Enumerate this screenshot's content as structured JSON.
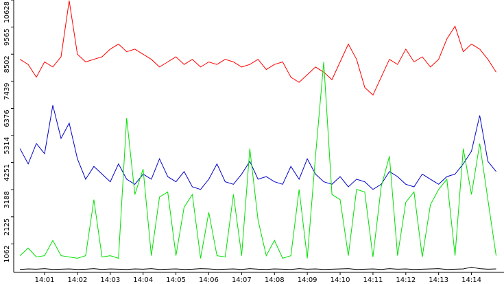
{
  "chart_data": {
    "type": "line",
    "x": [
      0.25,
      0.5,
      0.75,
      1,
      1.25,
      1.5,
      1.75,
      2,
      2.25,
      2.5,
      2.75,
      3,
      3.25,
      3.5,
      3.75,
      4,
      4.25,
      4.5,
      4.75,
      5,
      5.25,
      5.5,
      5.75,
      6,
      6.25,
      6.5,
      6.75,
      7,
      7.25,
      7.5,
      7.75,
      8,
      8.25,
      8.5,
      8.75,
      9,
      9.25,
      9.5,
      9.75,
      10,
      10.25,
      10.5,
      10.75,
      11,
      11.25,
      11.5,
      11.75,
      12,
      12.25,
      12.5,
      12.75,
      13,
      13.25,
      13.5,
      13.75,
      14,
      14.25,
      14.5,
      14.75
    ],
    "series": [
      {
        "color": "#ff0000",
        "values": [
          8300,
          8100,
          7600,
          8200,
          8000,
          8400,
          10600,
          8500,
          8200,
          8300,
          8400,
          8700,
          8900,
          8600,
          8700,
          8500,
          8300,
          8000,
          8200,
          8400,
          8100,
          8300,
          8000,
          8200,
          8100,
          8300,
          8200,
          8000,
          8100,
          8300,
          7900,
          8100,
          8200,
          7600,
          7400,
          7700,
          8000,
          7800,
          7500,
          8200,
          8900,
          8300,
          7200,
          6900,
          7600,
          8300,
          8100,
          8700,
          8200,
          8400,
          8000,
          8300,
          9100,
          9600,
          8600,
          8900,
          8700,
          8300,
          7800
        ]
      },
      {
        "color": "#0000c8",
        "values": [
          4800,
          4200,
          5000,
          4600,
          6500,
          5200,
          5800,
          4400,
          3600,
          4100,
          3800,
          3500,
          4200,
          3600,
          3400,
          3800,
          3600,
          4400,
          3700,
          3500,
          3900,
          3300,
          3200,
          3600,
          4200,
          3500,
          3400,
          3800,
          4300,
          3600,
          3700,
          3500,
          3400,
          4100,
          3600,
          4400,
          3800,
          3500,
          3400,
          3700,
          3300,
          3600,
          3500,
          3200,
          3400,
          3900,
          3700,
          3400,
          3300,
          3800,
          3600,
          3400,
          3700,
          3800,
          4200,
          4700,
          6100,
          4300,
          3900
        ]
      },
      {
        "color": "#00e000",
        "values": [
          600,
          900,
          550,
          600,
          1200,
          600,
          550,
          500,
          600,
          2800,
          550,
          600,
          500,
          6000,
          3000,
          4000,
          600,
          2900,
          3100,
          600,
          2500,
          3000,
          500,
          2300,
          600,
          550,
          3000,
          600,
          4800,
          2000,
          600,
          1200,
          500,
          600,
          3200,
          500,
          4500,
          8200,
          3000,
          2800,
          600,
          3200,
          3100,
          550,
          3300,
          4500,
          600,
          2700,
          3100,
          550,
          2600,
          3200,
          3600,
          600,
          4800,
          3000,
          5000,
          2800,
          600
        ]
      },
      {
        "color": "#000000",
        "values": [
          60,
          80,
          70,
          90,
          60,
          70,
          80,
          60,
          70,
          90,
          60,
          80,
          70,
          60,
          80,
          70,
          90,
          60,
          70,
          80,
          60,
          70,
          90,
          80,
          60,
          70,
          80,
          60,
          90,
          70,
          60,
          80,
          70,
          60,
          90,
          70,
          80,
          60,
          70,
          80,
          90,
          60,
          70,
          80,
          60,
          90,
          70,
          80,
          60,
          70,
          80,
          90,
          60,
          70,
          80,
          150,
          90,
          70,
          80
        ]
      }
    ],
    "xlim": [
      0.06,
      14.99
    ],
    "xticks": [
      {
        "value": 1,
        "label": "14:01"
      },
      {
        "value": 2,
        "label": "14:02"
      },
      {
        "value": 3,
        "label": "14:03"
      },
      {
        "value": 4,
        "label": "14:04"
      },
      {
        "value": 5,
        "label": "14:05"
      },
      {
        "value": 6,
        "label": "14:06"
      },
      {
        "value": 7,
        "label": "14:07"
      },
      {
        "value": 8,
        "label": "14:08"
      },
      {
        "value": 9,
        "label": "14:09"
      },
      {
        "value": 10,
        "label": "14:10"
      },
      {
        "value": 11,
        "label": "14:11"
      },
      {
        "value": 12,
        "label": "14:12"
      },
      {
        "value": 13,
        "label": "14:13"
      },
      {
        "value": 14,
        "label": "14:14"
      }
    ],
    "ylim": [
      0,
      10628
    ],
    "yticks": [
      1062,
      2125,
      3188,
      4251,
      5314,
      6376,
      7439,
      8502,
      9565,
      10628
    ]
  }
}
